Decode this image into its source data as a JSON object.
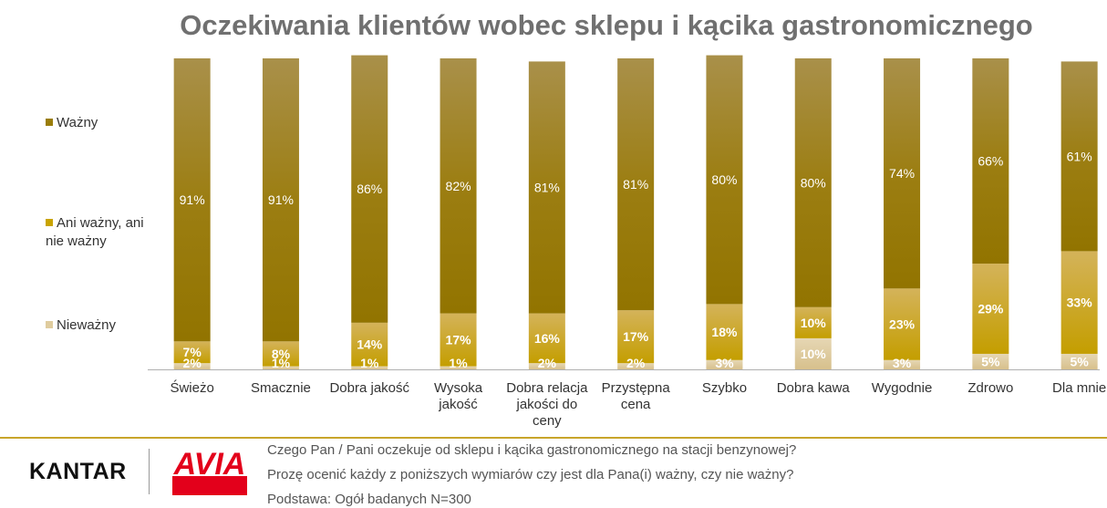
{
  "title": "Oczekiwania klientów wobec sklepu i kącika gastronomicznego",
  "legend": [
    {
      "label": "Ważny",
      "color": "#9a7d0a"
    },
    {
      "label": "Ani ważny, ani nie ważny",
      "color": "#c9a400"
    },
    {
      "label": "Nieważny",
      "color": "#dfcc9e"
    }
  ],
  "chart_data": {
    "type": "bar",
    "stacked": true,
    "ylim": [
      0,
      100
    ],
    "categories": [
      [
        "Świeżo"
      ],
      [
        "Smacznie"
      ],
      [
        "Dobra jakość"
      ],
      [
        "Wysoka",
        "jakość"
      ],
      [
        "Dobra relacja",
        "jakości do",
        "ceny"
      ],
      [
        "Przystępna",
        "cena"
      ],
      [
        "Szybko"
      ],
      [
        "Dobra kawa"
      ],
      [
        "Wygodnie"
      ],
      [
        "Zdrowo"
      ],
      [
        "Dla mnie"
      ]
    ],
    "series": [
      {
        "name": "Nieważny",
        "values": [
          2,
          1,
          1,
          1,
          2,
          2,
          3,
          10,
          3,
          5,
          5
        ],
        "labels": [
          "2%",
          "1%",
          "1%",
          "1%",
          "2%",
          "2%",
          "3%",
          "10%",
          "3%",
          "5%",
          "5%"
        ]
      },
      {
        "name": "Ani ważny, ani nie ważny",
        "values": [
          7,
          8,
          14,
          17,
          16,
          17,
          18,
          10,
          23,
          29,
          33
        ],
        "labels": [
          "7%",
          "8%",
          "14%",
          "17%",
          "16%",
          "17%",
          "18%",
          "10%",
          "23%",
          "29%",
          "33%"
        ]
      },
      {
        "name": "Ważny",
        "values": [
          91,
          91,
          86,
          82,
          81,
          81,
          80,
          80,
          74,
          66,
          61
        ],
        "labels": [
          "91%",
          "91%",
          "86%",
          "82%",
          "81%",
          "81%",
          "80%",
          "80%",
          "74%",
          "66%",
          "61%"
        ]
      }
    ]
  },
  "footer": {
    "kantar_logo": "KANTAR",
    "avia_logo": "AVIA",
    "question1": "Czego Pan / Pani oczekuje od sklepu i kącika gastronomicznego na stacji benzynowej?",
    "question2": "Prozę ocenić każdy z poniższych wymiarów czy jest dla Pana(i) ważny, czy nie ważny?",
    "base": "Podstawa: Ogół badanych N=300"
  }
}
